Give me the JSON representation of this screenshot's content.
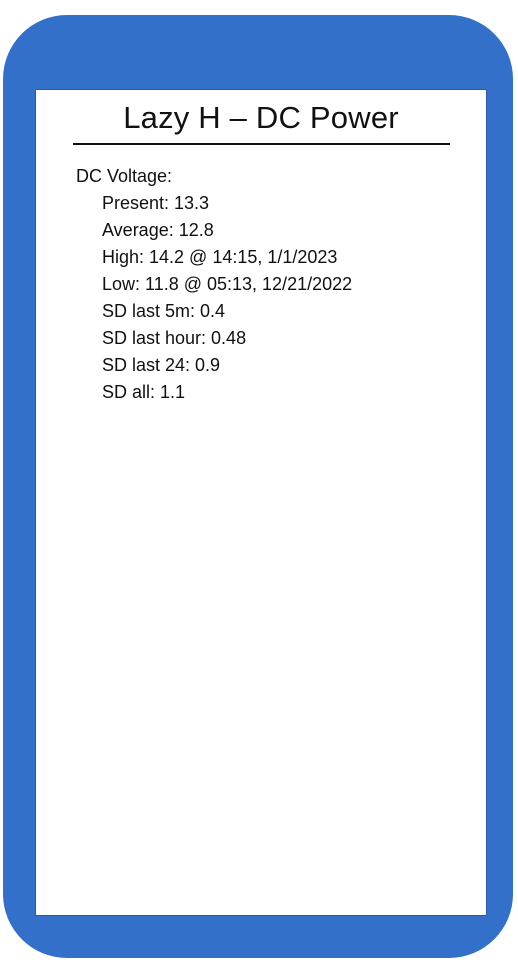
{
  "app": {
    "title": "Lazy H – DC Power"
  },
  "colors": {
    "device_frame": "#3370c9",
    "screen_background": "#ffffff",
    "text": "#111111"
  },
  "dc_voltage": {
    "label": "DC Voltage:",
    "stats": [
      "Present: 13.3",
      "Average: 12.8",
      "High: 14.2 @ 14:15, 1/1/2023",
      "Low: 11.8 @ 05:13, 12/21/2022",
      "SD last 5m: 0.4",
      "SD last hour: 0.48",
      "SD last 24: 0.9",
      "SD all: 1.1"
    ]
  }
}
